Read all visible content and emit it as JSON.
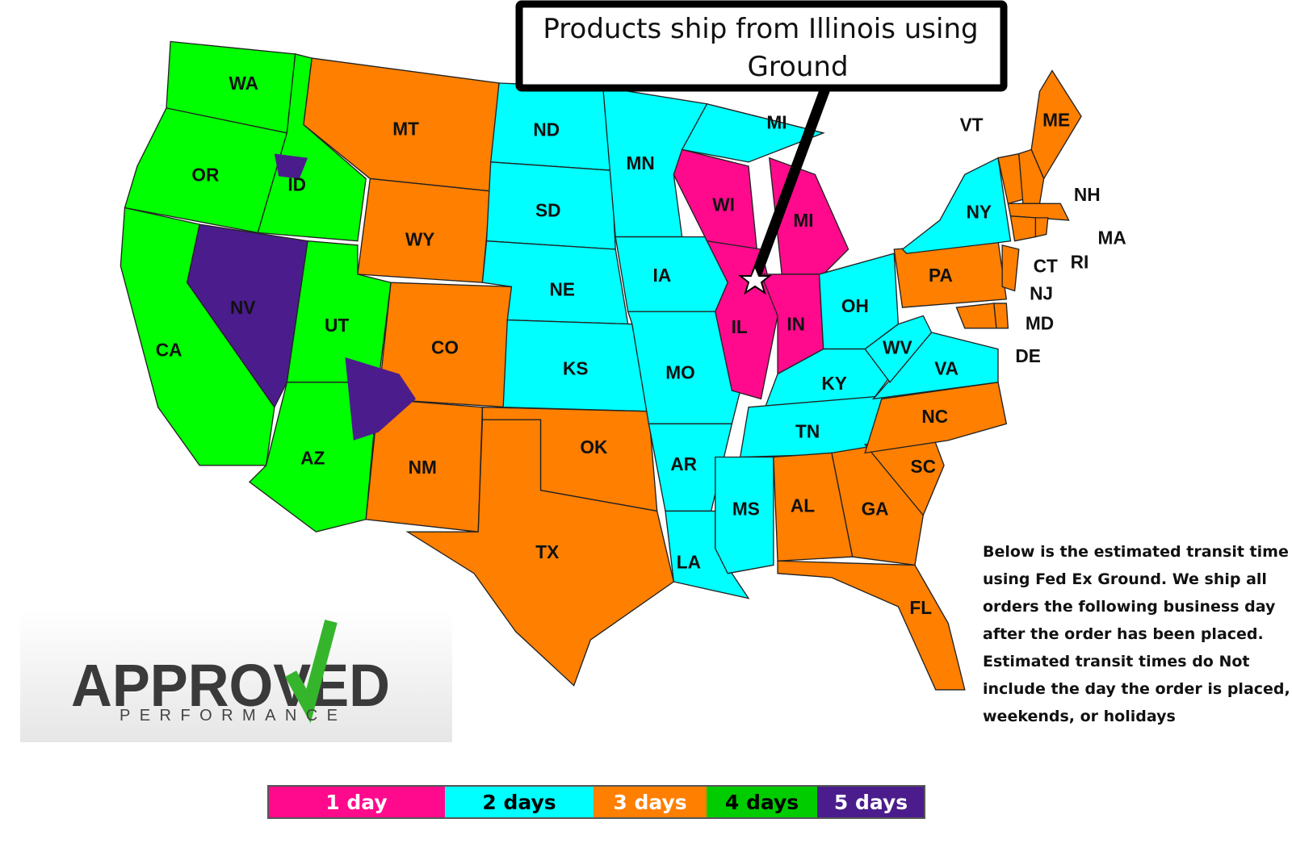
{
  "callout": [
    "Products ship from Illinois using",
    "Ground"
  ],
  "states": [
    {
      "label": "WA",
      "color": "#00ff00"
    },
    {
      "label": "OR",
      "color": "#00ff00"
    },
    {
      "label": "CA",
      "color": "#00ff00"
    },
    {
      "label": "NV",
      "color": "#4b1c8c"
    },
    {
      "label": "ID",
      "color": "#00ff00"
    },
    {
      "label": "MT",
      "color": "#ff7f00"
    },
    {
      "label": "WY",
      "color": "#ff7f00"
    },
    {
      "label": "UT",
      "color": "#00ff00"
    },
    {
      "label": "AZ",
      "color": "#00ff00"
    },
    {
      "label": "CO",
      "color": "#ff7f00"
    },
    {
      "label": "NM",
      "color": "#ff7f00"
    },
    {
      "label": "ND",
      "color": "#00ffff"
    },
    {
      "label": "SD",
      "color": "#00ffff"
    },
    {
      "label": "NE",
      "color": "#00ffff"
    },
    {
      "label": "KS",
      "color": "#00ffff"
    },
    {
      "label": "OK",
      "color": "#ff7f00"
    },
    {
      "label": "TX",
      "color": "#ff7f00"
    },
    {
      "label": "MN",
      "color": "#00ffff"
    },
    {
      "label": "IA",
      "color": "#00ffff"
    },
    {
      "label": "MO",
      "color": "#00ffff"
    },
    {
      "label": "AR",
      "color": "#00ffff"
    },
    {
      "label": "LA",
      "color": "#00ffff"
    },
    {
      "label": "WI",
      "color": "#ff0a8c"
    },
    {
      "label": "MI",
      "color": "#ff0a8c"
    },
    {
      "label": "MI",
      "color": "#00ffff"
    },
    {
      "label": "IL",
      "color": "#ff0a8c"
    },
    {
      "label": "IN",
      "color": "#ff0a8c"
    },
    {
      "label": "OH",
      "color": "#00ffff"
    },
    {
      "label": "KY",
      "color": "#00ffff"
    },
    {
      "label": "TN",
      "color": "#00ffff"
    },
    {
      "label": "MS",
      "color": "#00ffff"
    },
    {
      "label": "AL",
      "color": "#ff7f00"
    },
    {
      "label": "GA",
      "color": "#ff7f00"
    },
    {
      "label": "FL",
      "color": "#ff7f00"
    },
    {
      "label": "SC",
      "color": "#ff7f00"
    },
    {
      "label": "NC",
      "color": "#ff7f00"
    },
    {
      "label": "VA",
      "color": "#00ffff"
    },
    {
      "label": "WV",
      "color": "#00ffff"
    },
    {
      "label": "PA",
      "color": "#ff7f00"
    },
    {
      "label": "NY",
      "color": "#00ffff"
    },
    {
      "label": "ME",
      "color": "#ff7f00"
    },
    {
      "label": "VT",
      "color": "#ff7f00"
    },
    {
      "label": "NH",
      "color": "#ff7f00"
    },
    {
      "label": "MA",
      "color": "#ff7f00"
    },
    {
      "label": "RI",
      "color": "#ff7f00"
    },
    {
      "label": "CT",
      "color": "#ff7f00"
    },
    {
      "label": "NJ",
      "color": "#ff7f00"
    },
    {
      "label": "MD",
      "color": "#ff7f00"
    },
    {
      "label": "DE",
      "color": "#ff7f00"
    }
  ],
  "description": [
    "Below is the estimated transit time",
    "using Fed Ex Ground. We ship all",
    "orders the following business day",
    "after the order has been placed.",
    "Estimated transit times do Not",
    "include the day the order is placed,",
    "weekends, or holidays"
  ],
  "logo": {
    "name": "APPROVED",
    "tagline": "PERFORMANCE"
  },
  "legend": [
    {
      "label": "1 day",
      "color": "#ff0a8c"
    },
    {
      "label": "2 days",
      "color": "#00ffff"
    },
    {
      "label": "3 days",
      "color": "#ff7f00"
    },
    {
      "label": "4 days",
      "color": "#00cc00"
    },
    {
      "label": "5 days",
      "color": "#4b1c8c"
    }
  ]
}
